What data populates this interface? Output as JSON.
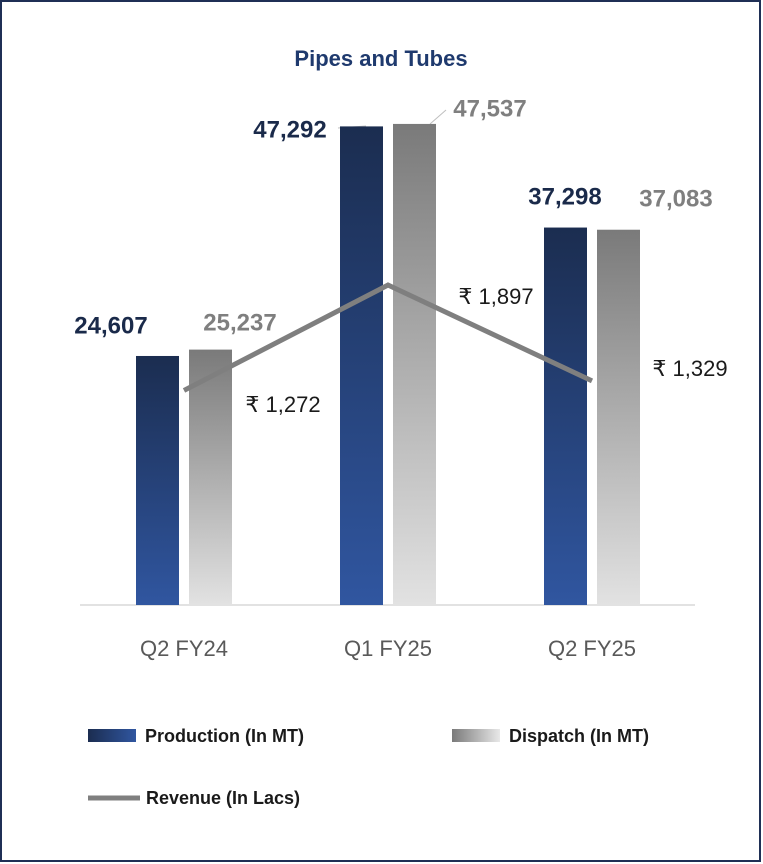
{
  "chart_data": {
    "type": "bar",
    "title": "Pipes and Tubes",
    "categories": [
      "Q2 FY24",
      "Q1 FY25",
      "Q2 FY25"
    ],
    "ylim": [
      0,
      50000
    ],
    "y2lim": [
      0,
      3000
    ],
    "series": [
      {
        "name": "Production (In MT)",
        "color": "#2f5597",
        "values": [
          24607,
          47292,
          37298
        ],
        "value_labels": [
          "24,607",
          "47,292",
          "37,298"
        ]
      },
      {
        "name": "Dispatch (In MT)",
        "color": "#a6a6a6",
        "values": [
          25237,
          47537,
          37083
        ],
        "value_labels": [
          "25,237",
          "47,537",
          "37,083"
        ]
      },
      {
        "name": "Revenue (In Lacs)",
        "type": "line",
        "axis": "y2",
        "color": "#7f7f7f",
        "values": [
          1272,
          1897,
          1329
        ],
        "value_labels": [
          "₹ 1,272",
          "₹ 1,897",
          "₹ 1,329"
        ]
      }
    ]
  }
}
